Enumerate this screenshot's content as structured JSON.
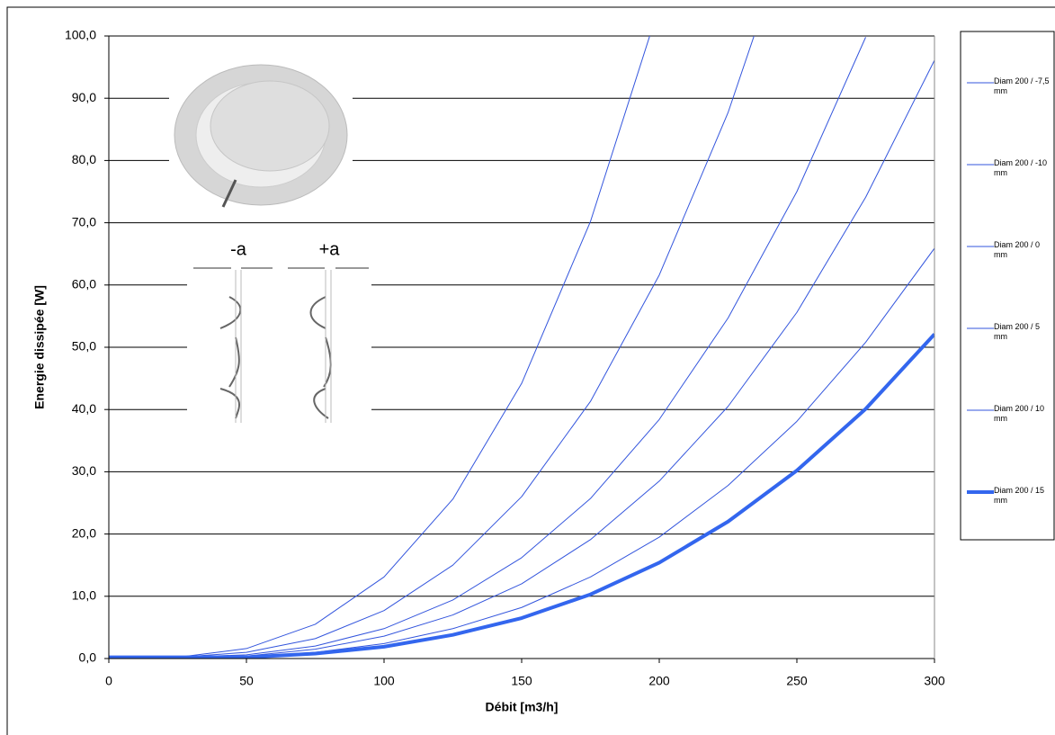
{
  "chart_data": {
    "type": "line",
    "x_label": "Débit [m3/h]",
    "y_label": "Energie dissipée [W]",
    "annotations": [
      "-a",
      "+a"
    ],
    "x": [
      0,
      25,
      50,
      75,
      100,
      125,
      150,
      175,
      200,
      225,
      250,
      275,
      300
    ],
    "xlim": [
      0,
      300
    ],
    "xticks": [
      0,
      50,
      100,
      150,
      200,
      250,
      300
    ],
    "ylim": [
      0,
      100
    ],
    "yticks": [
      {
        "value": 0,
        "label": "0,0"
      },
      {
        "value": 10,
        "label": "10,0"
      },
      {
        "value": 20,
        "label": "20,0"
      },
      {
        "value": 30,
        "label": "30,0"
      },
      {
        "value": 40,
        "label": "40,0"
      },
      {
        "value": 50,
        "label": "50,0"
      },
      {
        "value": 60,
        "label": "60,0"
      },
      {
        "value": 70,
        "label": "70,0"
      },
      {
        "value": 80,
        "label": "80,0"
      },
      {
        "value": 90,
        "label": "90,0"
      },
      {
        "value": 100,
        "label": "100,0"
      }
    ],
    "grid": true,
    "legend": "right",
    "series": [
      {
        "name": "Diam 200 / -7,5 mm",
        "color": "#3355dd",
        "width": 1,
        "values": [
          0.2,
          0.2,
          1.6,
          5.5,
          13.1,
          25.6,
          44.2,
          70.2,
          104.8,
          null,
          null,
          null,
          null
        ]
      },
      {
        "name": "Diam 200 / -10 mm",
        "color": "#3355dd",
        "width": 1,
        "values": [
          0.2,
          0.2,
          1.0,
          3.2,
          7.7,
          15.0,
          26.0,
          41.3,
          61.6,
          87.7,
          120.3,
          null,
          null
        ]
      },
      {
        "name": "Diam 200 / 0 mm",
        "color": "#3355dd",
        "width": 1,
        "values": [
          0.2,
          0.2,
          0.6,
          2.0,
          4.8,
          9.4,
          16.2,
          25.7,
          38.4,
          54.7,
          75.0,
          99.8,
          null
        ]
      },
      {
        "name": "Diam 200 / 5 mm",
        "color": "#3355dd",
        "width": 1,
        "values": [
          0.2,
          0.2,
          0.4,
          1.5,
          3.6,
          7.0,
          12.0,
          19.1,
          28.5,
          40.5,
          55.6,
          74.1,
          96.1
        ]
      },
      {
        "name": "Diam 200 / 10 mm",
        "color": "#3355dd",
        "width": 1,
        "values": [
          0.2,
          0.2,
          0.3,
          1.0,
          2.4,
          4.8,
          8.2,
          13.1,
          19.5,
          27.8,
          38.1,
          50.8,
          65.9
        ]
      },
      {
        "name": "Diam 200 / 15 mm",
        "color": "#3366ee",
        "width": 4,
        "values": [
          0.2,
          0.2,
          0.2,
          0.8,
          1.9,
          3.8,
          6.5,
          10.3,
          15.4,
          22.0,
          30.2,
          40.1,
          52.1
        ]
      }
    ]
  }
}
